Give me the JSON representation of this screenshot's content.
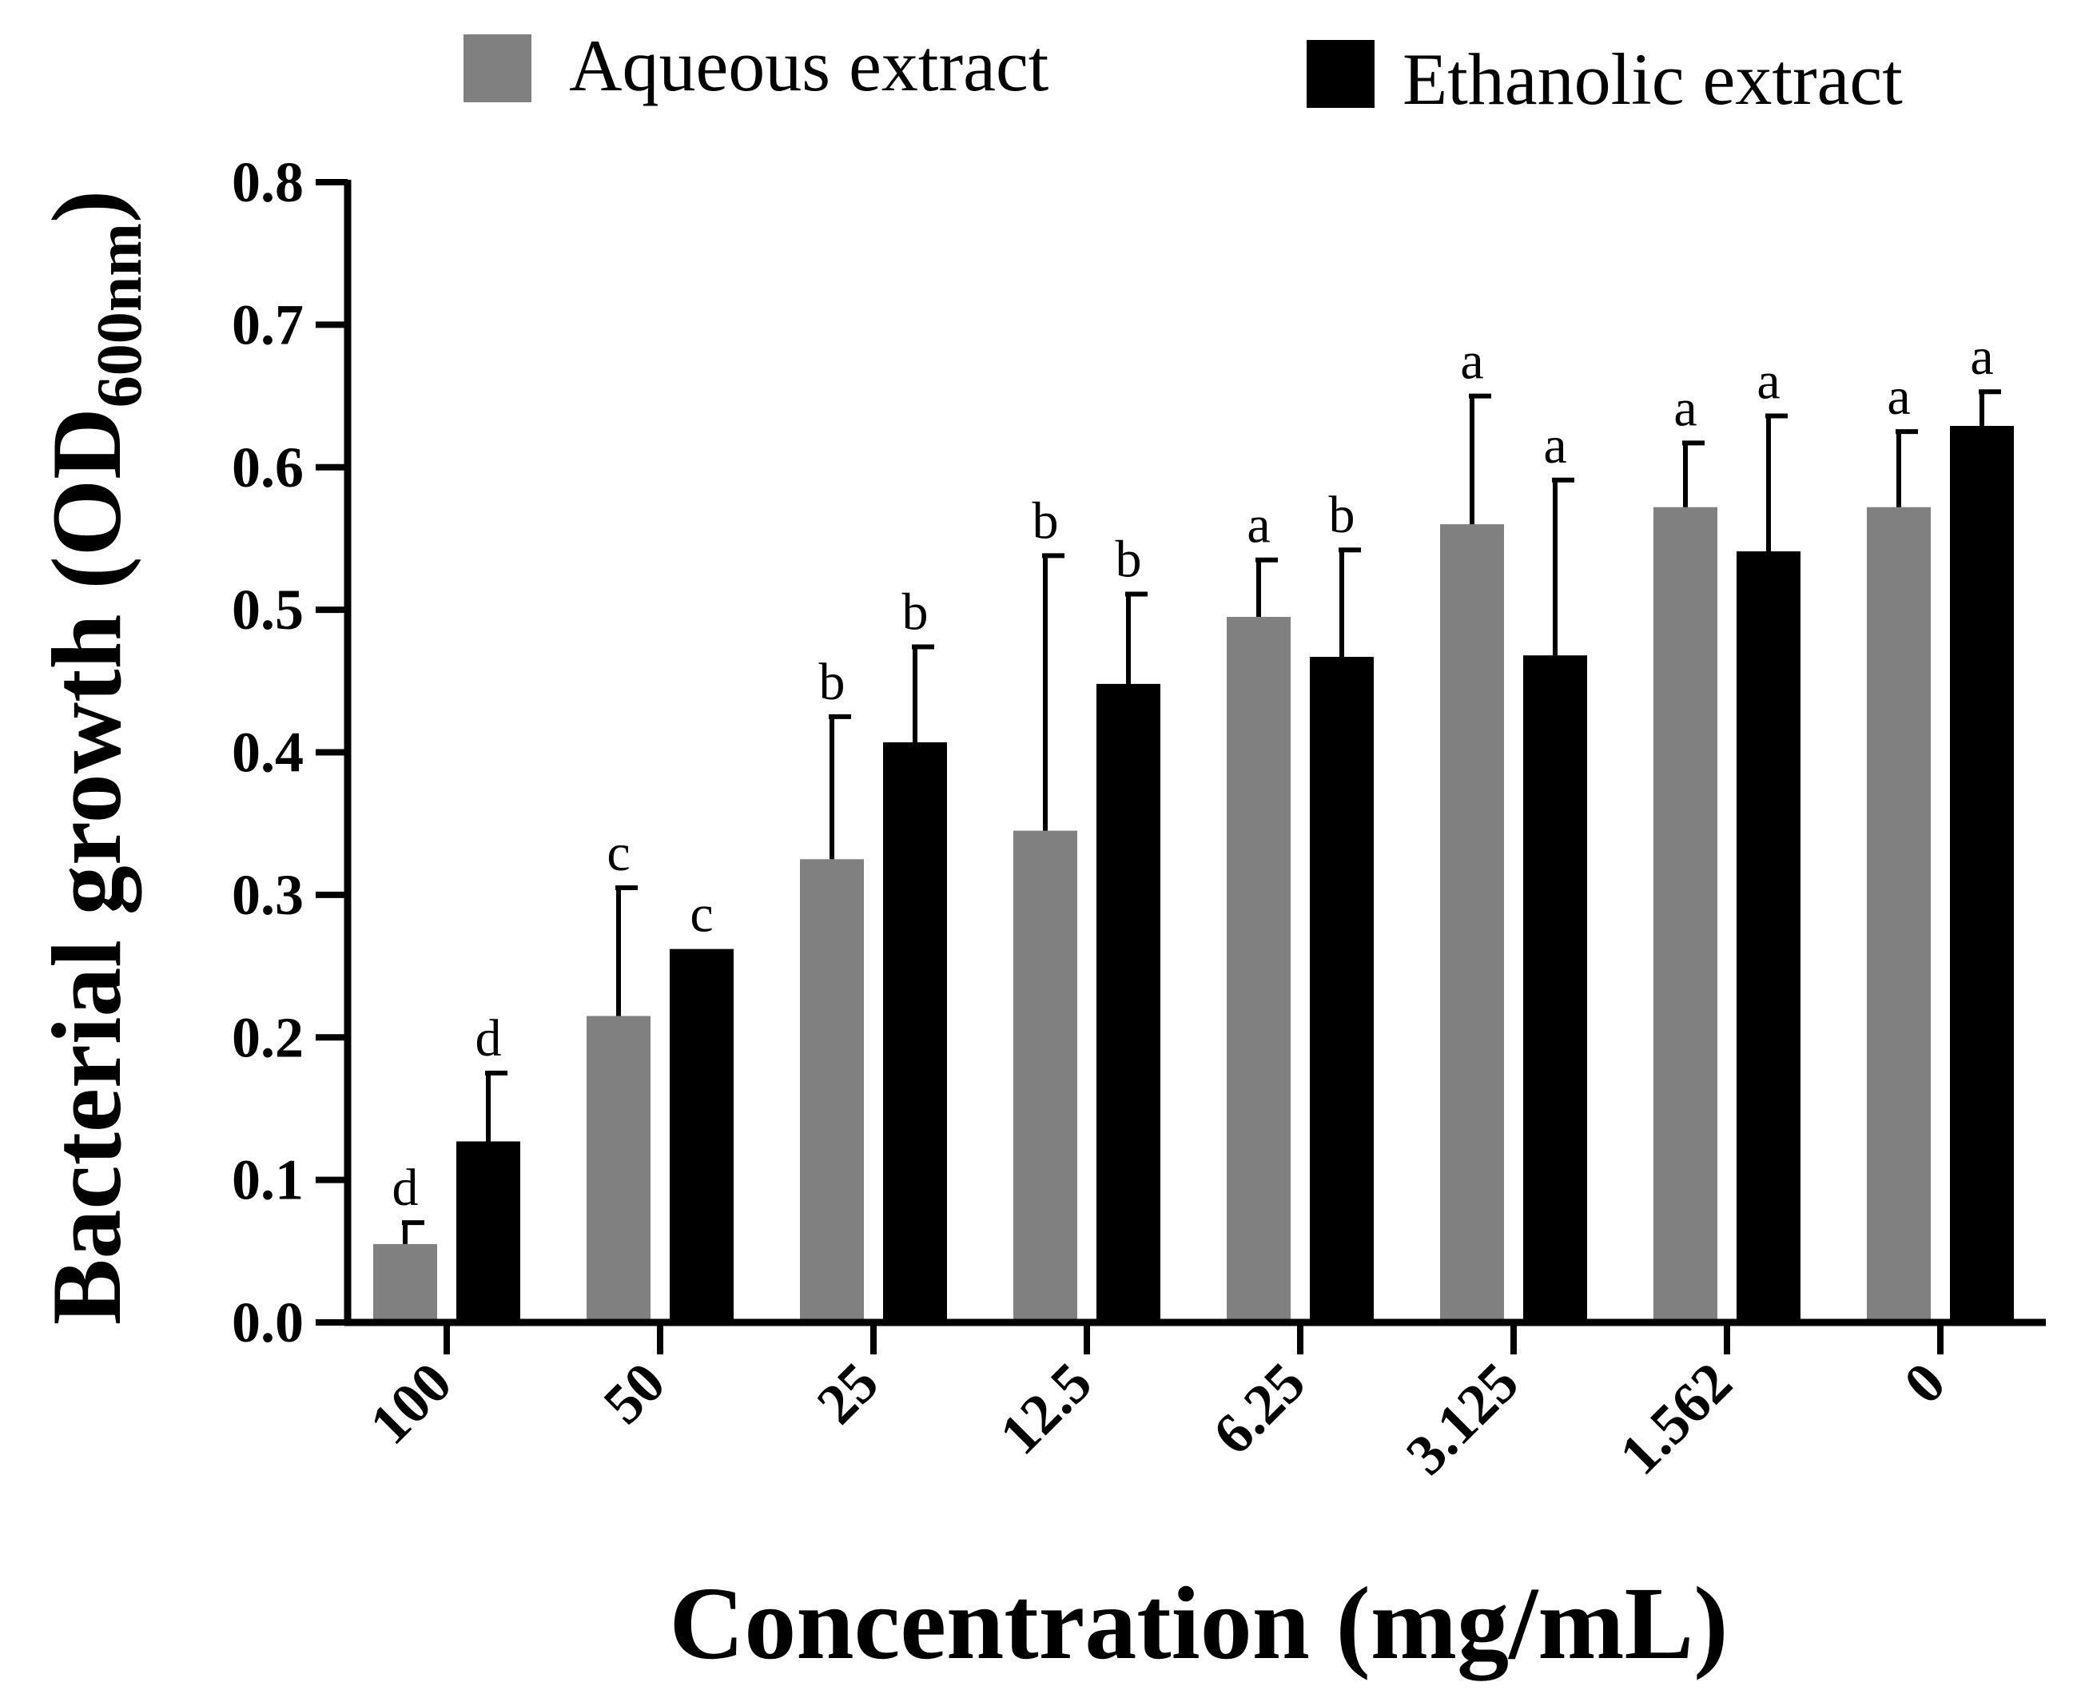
{
  "chart_data": {
    "type": "bar",
    "title": "",
    "xlabel": "Concentration (mg/mL)",
    "ylabel": "Bacterial growth (OD",
    "ylabel_subscript": "600nm",
    "ylabel_close": ")",
    "ylim": [
      0,
      0.8
    ],
    "yticks": [
      "0.0",
      "0.1",
      "0.2",
      "0.3",
      "0.4",
      "0.5",
      "0.6",
      "0.7",
      "0.8"
    ],
    "categories": [
      "100",
      "50",
      "25",
      "12.5",
      "6.25",
      "3.125",
      "1.562",
      "0"
    ],
    "legend_position": "top",
    "series": [
      {
        "name": "Aqueous extract",
        "color": "#808080",
        "values": [
          0.055,
          0.215,
          0.325,
          0.345,
          0.495,
          0.56,
          0.572,
          0.572
        ],
        "error": [
          0.015,
          0.09,
          0.1,
          0.193,
          0.04,
          0.09,
          0.045,
          0.053
        ],
        "letters": [
          "d",
          "c",
          "b",
          "b",
          "a",
          "a",
          "a",
          "a"
        ]
      },
      {
        "name": "Ethanolic extract",
        "color": "#000000",
        "values": [
          0.127,
          0.262,
          0.407,
          0.448,
          0.467,
          0.468,
          0.541,
          0.629
        ],
        "error": [
          0.048,
          0.0,
          0.067,
          0.063,
          0.075,
          0.123,
          0.095,
          0.024
        ],
        "letters": [
          "d",
          "c",
          "b",
          "b",
          "b",
          "a",
          "a",
          "a"
        ]
      }
    ]
  }
}
